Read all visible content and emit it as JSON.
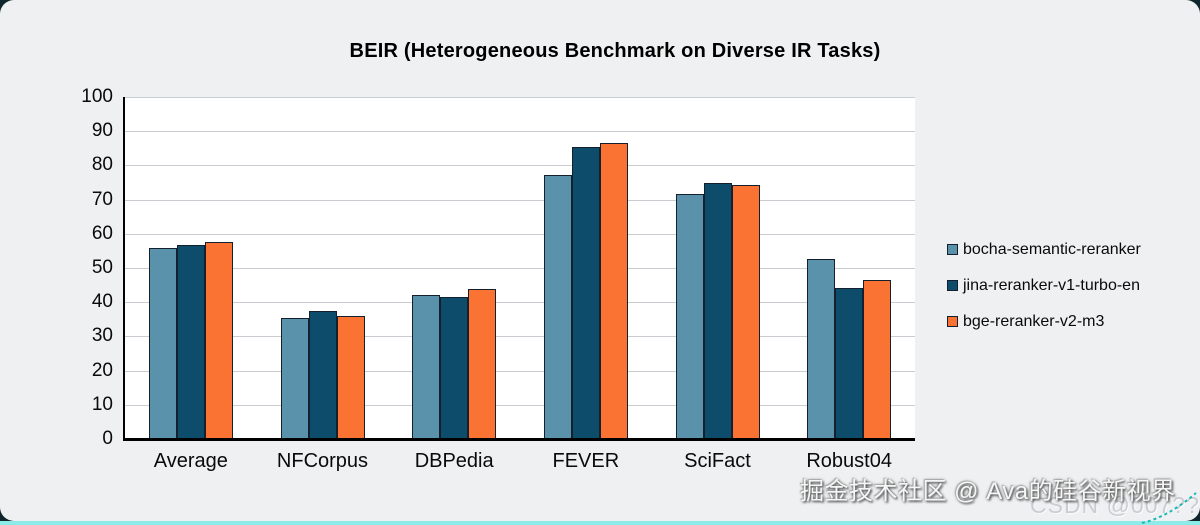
{
  "page": {
    "background_color": "#0f262c",
    "card_color": "#eef0f2",
    "bottom_strip_color": "#8debe8"
  },
  "chart_data": {
    "type": "bar",
    "title": "BEIR (Heterogeneous Benchmark on Diverse IR Tasks)",
    "categories": [
      "Average",
      "NFCorpus",
      "DBPedia",
      "FEVER",
      "SciFact",
      "Robust04"
    ],
    "series": [
      {
        "name": "bocha-semantic-reranker",
        "color": "#5b92ab",
        "values": [
          55.8,
          35.5,
          42.1,
          77.2,
          71.6,
          52.5
        ]
      },
      {
        "name": "jina-reranker-v1-turbo-en",
        "color": "#0d4d6b",
        "values": [
          56.8,
          37.3,
          41.6,
          85.3,
          74.8,
          44.2
        ]
      },
      {
        "name": "bge-reranker-v2-m3",
        "color": "#fa7332",
        "values": [
          57.6,
          36.0,
          43.9,
          86.6,
          74.4,
          46.4
        ]
      }
    ],
    "ylim": [
      0,
      100
    ],
    "yticks": [
      0,
      10,
      20,
      30,
      40,
      50,
      60,
      70,
      80,
      90,
      100
    ],
    "grid": true,
    "gridline_color": "#c9cdd1",
    "axis_color": "#000000",
    "plot_background": "#ffffff",
    "legend_position": "right",
    "xlabel": "",
    "ylabel": ""
  },
  "watermark": {
    "primary": "掘金技术社区 @ Ava的硅谷新视界",
    "secondary": "CSDN @007??1"
  }
}
